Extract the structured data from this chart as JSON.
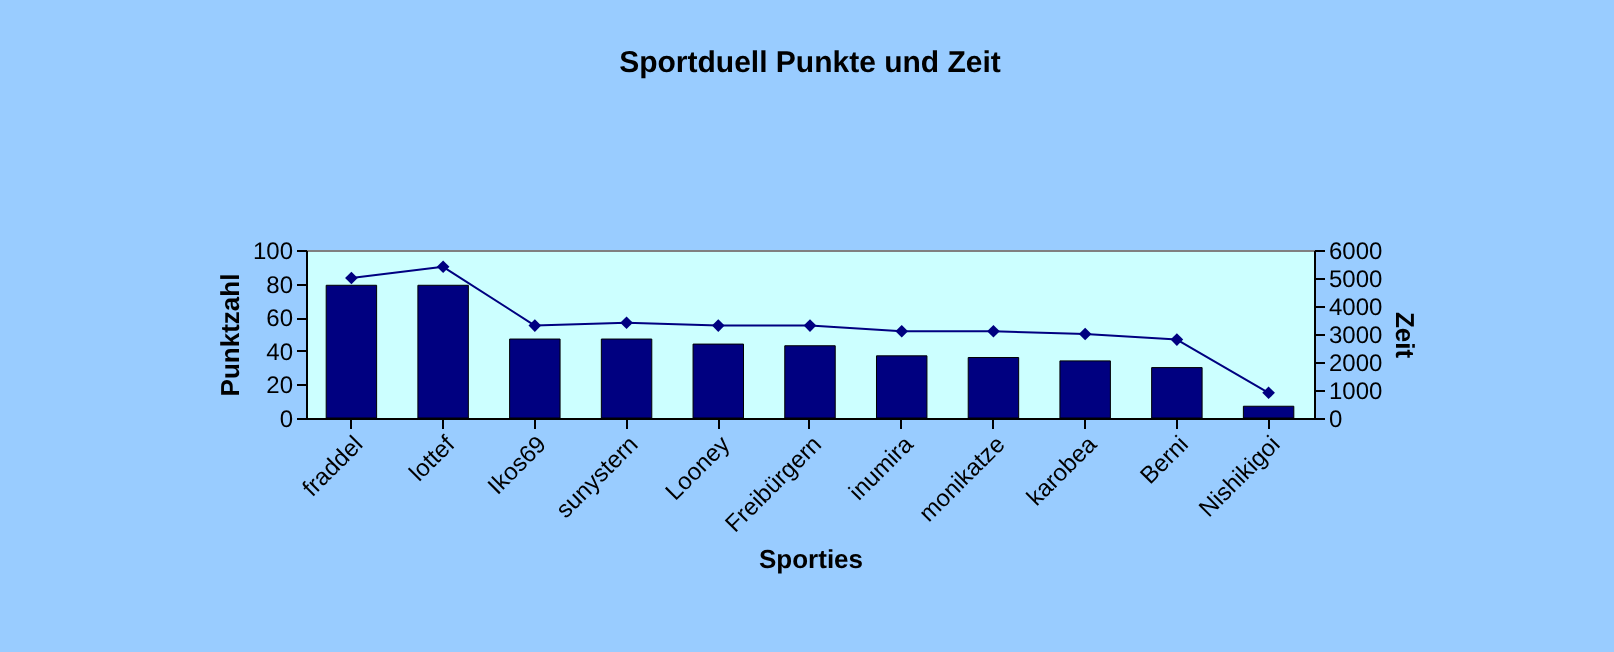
{
  "chart_data": {
    "type": "bar",
    "title": "Sportduell Punkte und Zeit",
    "xlabel": "Sporties",
    "ylabel": "Punktzahl",
    "y2label": "Zeit",
    "categories": [
      "fraddel",
      "lottef",
      "Ikos69",
      "sunystern",
      "Looney",
      "Freibürgern",
      "inumira",
      "monikatze",
      "karobea",
      "Berni",
      "Nishikigoi"
    ],
    "series": [
      {
        "color": "#000080",
        "values": [
          79,
          79,
          47,
          47,
          44,
          43,
          37,
          36,
          34,
          30,
          7
        ]
      },
      {
        "type": "line",
        "axis": "y2",
        "color": "#000080",
        "marker": "diamond",
        "values": [
          5000,
          5400,
          3300,
          3400,
          3300,
          3300,
          3100,
          3100,
          3000,
          2800,
          900
        ]
      }
    ],
    "ylim": [
      0,
      100
    ],
    "yticks": [
      0,
      20,
      40,
      60,
      80,
      100
    ],
    "y2lim": [
      0,
      6000
    ],
    "y2ticks": [
      0,
      1000,
      2000,
      3000,
      4000,
      5000,
      6000
    ],
    "grid": false
  }
}
